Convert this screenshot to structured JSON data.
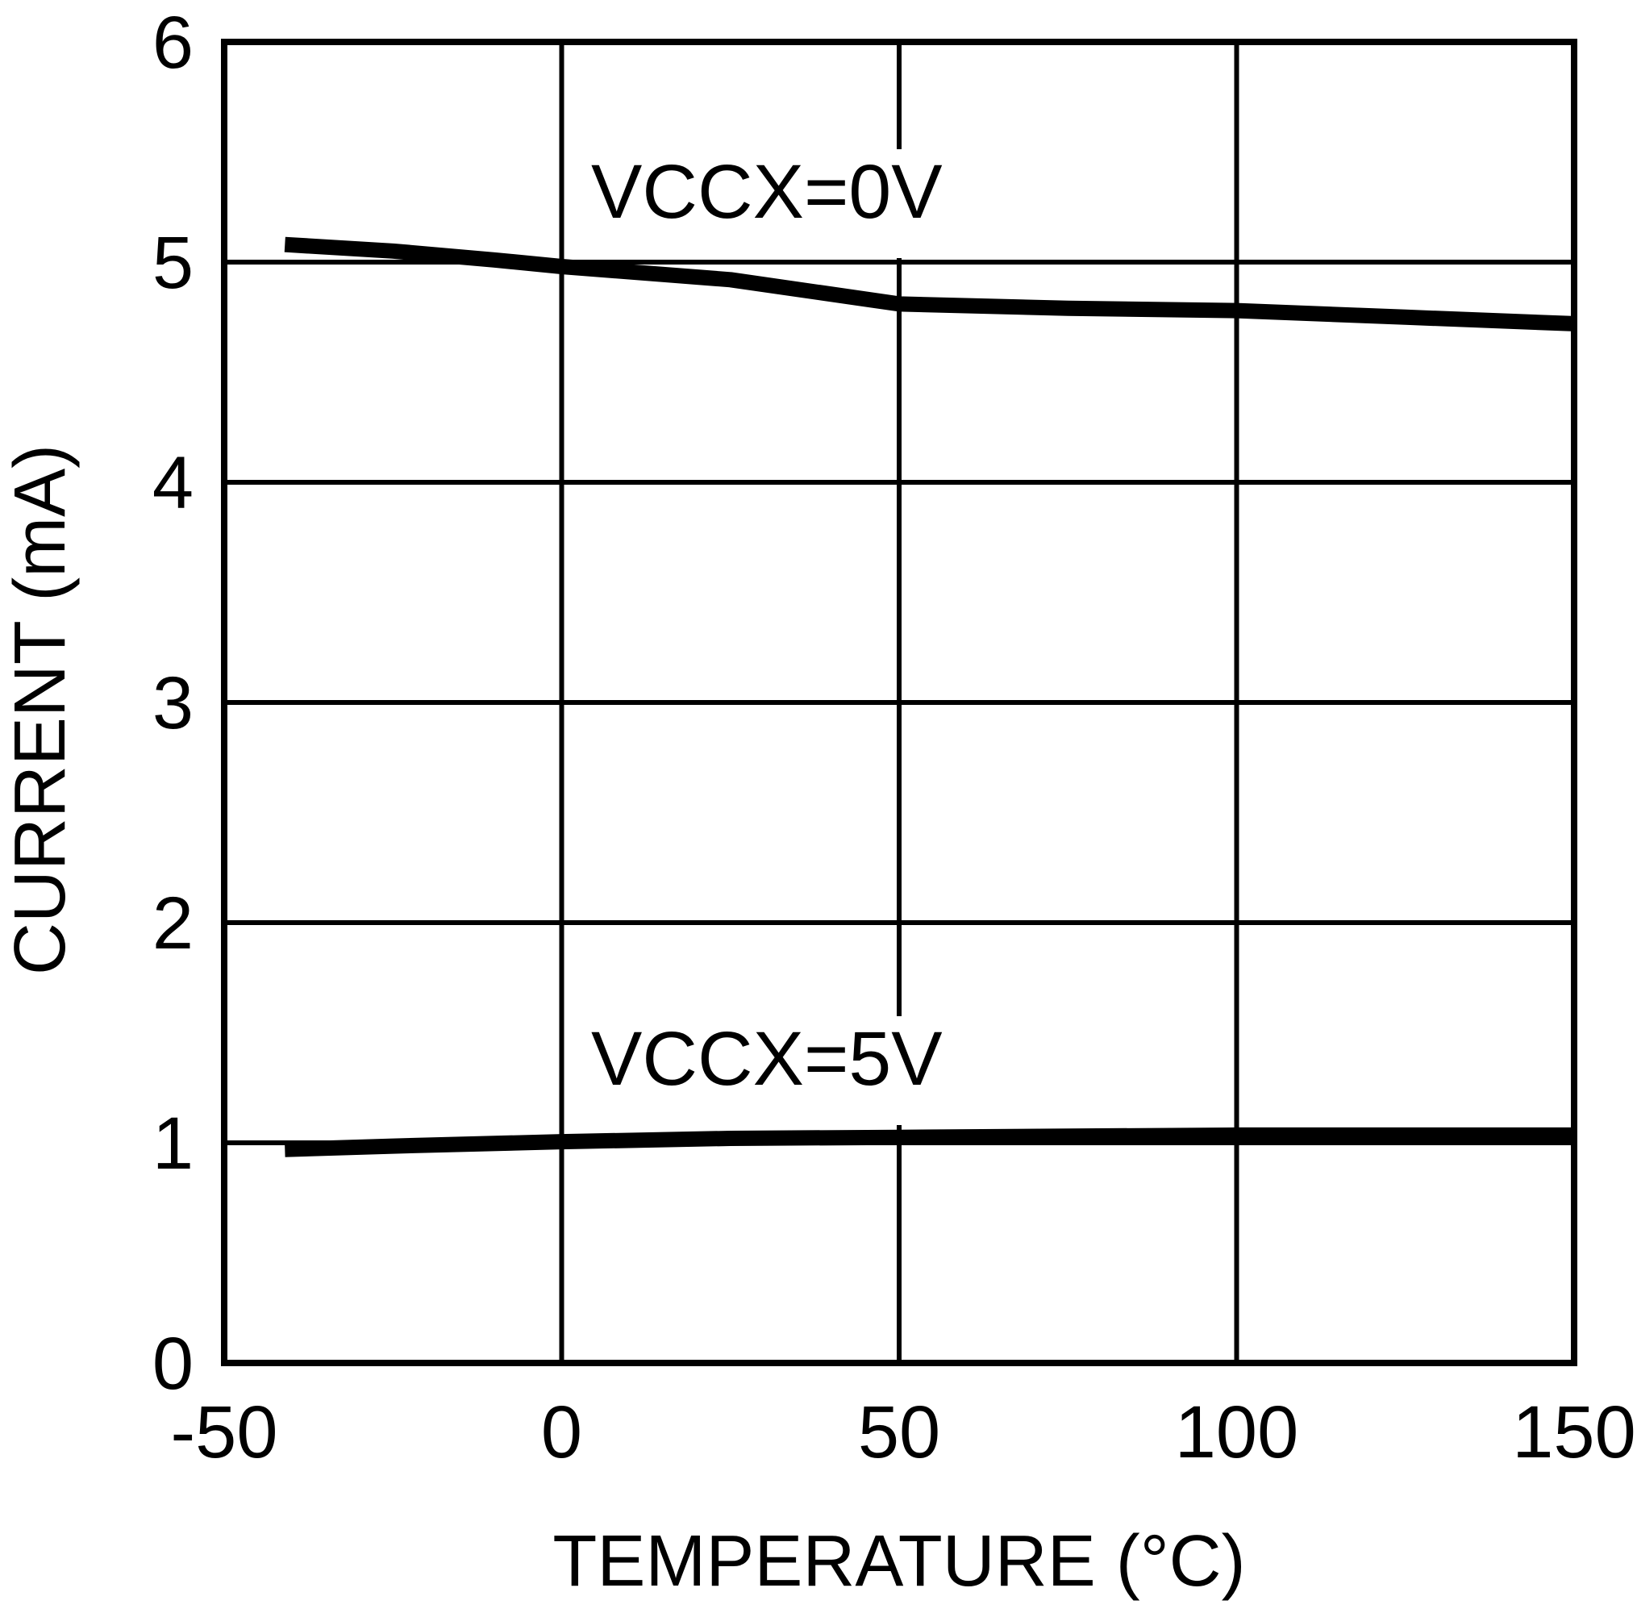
{
  "figure": {
    "background_color": "#ffffff",
    "ink_color": "#000000"
  },
  "chart_data": {
    "type": "line",
    "title": "",
    "xlabel": "TEMPERATURE (°C)",
    "ylabel": "CURRENT (mA)",
    "xlim": [
      -50,
      150
    ],
    "ylim": [
      0,
      6
    ],
    "xticks": [
      -50,
      0,
      50,
      100,
      150
    ],
    "yticks": [
      0,
      1,
      2,
      3,
      4,
      5,
      6
    ],
    "grid": true,
    "legend_position": "inline-annotations",
    "series": [
      {
        "name": "VCCX=0V",
        "x": [
          -41,
          -25,
          -10,
          0,
          25,
          50,
          75,
          100,
          125,
          150
        ],
        "y": [
          5.08,
          5.05,
          5.01,
          4.98,
          4.92,
          4.81,
          4.79,
          4.78,
          4.75,
          4.72
        ]
      },
      {
        "name": "VCCX=5V",
        "x": [
          -41,
          -25,
          0,
          25,
          50,
          75,
          100,
          125,
          150
        ],
        "y": [
          0.97,
          0.985,
          1.005,
          1.02,
          1.025,
          1.03,
          1.035,
          1.035,
          1.035
        ]
      }
    ]
  }
}
